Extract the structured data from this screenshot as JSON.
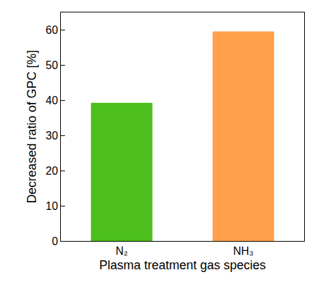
{
  "chart_data": {
    "type": "bar",
    "x_label": "Plasma treatment gas species",
    "y_label": "Decreased ratio of GPC [%]",
    "categories": [
      "N₂",
      "NH₃"
    ],
    "values": [
      39.2,
      59.5
    ],
    "colors": [
      "#4cbf1c",
      "#ffa04a"
    ],
    "ylim": [
      0,
      65
    ],
    "yticks": [
      0,
      10,
      20,
      30,
      40,
      50,
      60
    ],
    "grid": false
  }
}
